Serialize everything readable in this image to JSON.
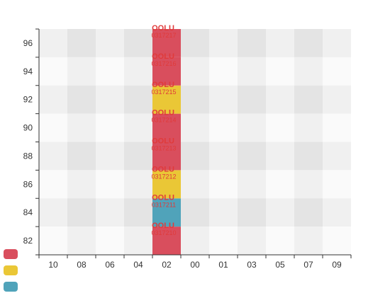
{
  "chart_data": {
    "type": "heatmap",
    "x_columns": [
      "10",
      "08",
      "06",
      "04",
      "02",
      "00",
      "01",
      "03",
      "05",
      "07",
      "09"
    ],
    "y_ticks": [
      "82",
      "84",
      "86",
      "88",
      "90",
      "92",
      "94",
      "96"
    ],
    "y_range": [
      81,
      97
    ],
    "cells": [
      {
        "x": "02",
        "y_from": 81,
        "y_to": 83,
        "color": "red",
        "label_top": "OOLU",
        "label_bottom": "0317210"
      },
      {
        "x": "02",
        "y_from": 83,
        "y_to": 85,
        "color": "blue",
        "label_top": "OOLU",
        "label_bottom": "0317211"
      },
      {
        "x": "02",
        "y_from": 85,
        "y_to": 87,
        "color": "yellow",
        "label_top": "OOLU",
        "label_bottom": "0317212"
      },
      {
        "x": "02",
        "y_from": 87,
        "y_to": 89,
        "color": "red",
        "label_top": "OOLU",
        "label_bottom": "0317213"
      },
      {
        "x": "02",
        "y_from": 89,
        "y_to": 91,
        "color": "red",
        "label_top": "OOLU",
        "label_bottom": "0317214"
      },
      {
        "x": "02",
        "y_from": 91,
        "y_to": 93,
        "color": "yellow",
        "label_top": "OOLU",
        "label_bottom": "0317215"
      },
      {
        "x": "02",
        "y_from": 93,
        "y_to": 95,
        "color": "red",
        "label_top": "OOLU",
        "label_bottom": "0317216"
      },
      {
        "x": "02",
        "y_from": 95,
        "y_to": 97,
        "color": "red",
        "label_top": "OOLU",
        "label_bottom": "0317217"
      }
    ],
    "legend": [
      {
        "color": "red"
      },
      {
        "color": "yellow"
      },
      {
        "color": "blue"
      }
    ],
    "grid": true
  },
  "colors": {
    "red": "#d94e5d",
    "yellow": "#eac736",
    "blue": "#50a3ba",
    "label": "#e03a3a",
    "axis": "#333333",
    "tick_text": "#333333",
    "band_dark": "#e4e4e4",
    "band_light": "#f0f0f0",
    "band_lighter": "#fafafa"
  }
}
